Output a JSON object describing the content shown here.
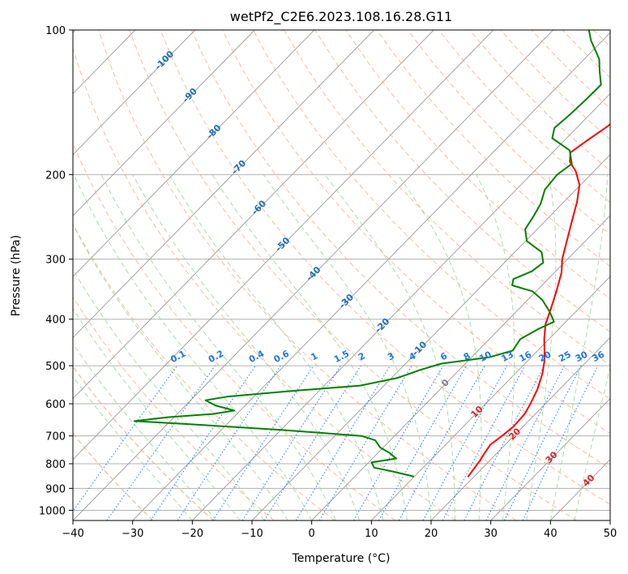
{
  "chart_data": {
    "type": "line",
    "subtype": "skew-t log-p diagram",
    "title": "wetPf2_C2E6.2023.108.16.28.G11",
    "xlabel": "Temperature (°C)",
    "ylabel": "Pressure (hPa)",
    "xlim": [
      -40,
      50
    ],
    "ylim": [
      1050,
      100
    ],
    "x_ticks": [
      -40,
      -30,
      -20,
      -10,
      0,
      10,
      20,
      30,
      40,
      50
    ],
    "y_ticks": [
      100,
      200,
      300,
      400,
      500,
      600,
      700,
      800,
      900,
      1000
    ],
    "colors": {
      "temperature": "#ff0000",
      "dewpoint": "#008000",
      "isotherm": "#999999",
      "dry_adiabat": "#f4a582",
      "moist_adiabat": "#9fd49f",
      "mixing_ratio": "#1f77e4",
      "isotherm_label": "#1f6fb4",
      "warm_label": "#d62728",
      "zero_label": "#7f7f7f",
      "frame": "#000000"
    },
    "isotherm_labels": {
      "cold": [
        "-100",
        "-90",
        "-80",
        "-70",
        "-60",
        "-50",
        "-40",
        "-30",
        "-20",
        "-10"
      ],
      "zero": "0",
      "warm": [
        "10",
        "20",
        "30",
        "40"
      ]
    },
    "mixing_ratio_labels": [
      "0.1",
      "0.2",
      "0.4",
      "0.6",
      "1",
      "1.5",
      "2",
      "3",
      "4",
      "6",
      "8",
      "10",
      "13",
      "16",
      "20",
      "25",
      "30",
      "36"
    ],
    "series": [
      {
        "name": "Temperature",
        "points": [
          [
            19.0,
            850
          ],
          [
            18.7,
            820
          ],
          [
            18.4,
            790
          ],
          [
            17.9,
            760
          ],
          [
            17.5,
            730
          ],
          [
            18.0,
            700
          ],
          [
            18.4,
            670
          ],
          [
            18.2,
            630
          ],
          [
            17.5,
            600
          ],
          [
            16.3,
            560
          ],
          [
            14.6,
            520
          ],
          [
            12.9,
            490
          ],
          [
            11.5,
            470
          ],
          [
            9.2,
            440
          ],
          [
            7.0,
            410
          ],
          [
            5.3,
            380
          ],
          [
            3.4,
            350
          ],
          [
            1.2,
            320
          ],
          [
            -0.9,
            300
          ],
          [
            -3.1,
            275
          ],
          [
            -5.5,
            250
          ],
          [
            -7.8,
            228
          ],
          [
            -10.2,
            210
          ],
          [
            -13.0,
            197
          ],
          [
            -15.6,
            188
          ],
          [
            -17.0,
            180
          ],
          [
            -16.2,
            170
          ],
          [
            -15.2,
            160
          ],
          [
            -14.3,
            150
          ],
          [
            -15.0,
            140
          ],
          [
            -16.1,
            130
          ],
          [
            -17.3,
            120
          ],
          [
            -18.8,
            113
          ],
          [
            -22.5,
            105
          ],
          [
            -24.6,
            100
          ]
        ]
      },
      {
        "name": "Dewpoint",
        "points": [
          [
            9.8,
            850
          ],
          [
            5.5,
            830
          ],
          [
            1.8,
            815
          ],
          [
            0.5,
            795
          ],
          [
            4.0,
            780
          ],
          [
            2.0,
            760
          ],
          [
            -0.5,
            740
          ],
          [
            -2.5,
            715
          ],
          [
            -5.5,
            700
          ],
          [
            -20.0,
            680
          ],
          [
            -38.0,
            660
          ],
          [
            -46.0,
            652
          ],
          [
            -41.0,
            640
          ],
          [
            -34.0,
            630
          ],
          [
            -31.0,
            620
          ],
          [
            -35.0,
            605
          ],
          [
            -37.5,
            590
          ],
          [
            -34.5,
            580
          ],
          [
            -25.0,
            565
          ],
          [
            -14.0,
            550
          ],
          [
            -9.0,
            530
          ],
          [
            -6.5,
            510
          ],
          [
            -4.0,
            495
          ],
          [
            3.0,
            480
          ],
          [
            5.8,
            465
          ],
          [
            5.2,
            440
          ],
          [
            6.5,
            420
          ],
          [
            8.0,
            405
          ],
          [
            5.5,
            385
          ],
          [
            2.5,
            365
          ],
          [
            -0.6,
            350
          ],
          [
            -5.0,
            340
          ],
          [
            -5.8,
            330
          ],
          [
            -4.0,
            318
          ],
          [
            -3.5,
            305
          ],
          [
            -5.5,
            290
          ],
          [
            -9.8,
            275
          ],
          [
            -12.0,
            260
          ],
          [
            -12.7,
            245
          ],
          [
            -13.6,
            230
          ],
          [
            -15.2,
            215
          ],
          [
            -15.6,
            200
          ],
          [
            -14.9,
            190
          ],
          [
            -17.5,
            178
          ],
          [
            -22.4,
            168
          ],
          [
            -23.7,
            160
          ],
          [
            -23.3,
            150
          ],
          [
            -23.1,
            140
          ],
          [
            -23.0,
            130
          ],
          [
            -25.4,
            122
          ],
          [
            -27.5,
            115
          ],
          [
            -32.0,
            105
          ],
          [
            -34.0,
            100
          ]
        ]
      }
    ]
  }
}
